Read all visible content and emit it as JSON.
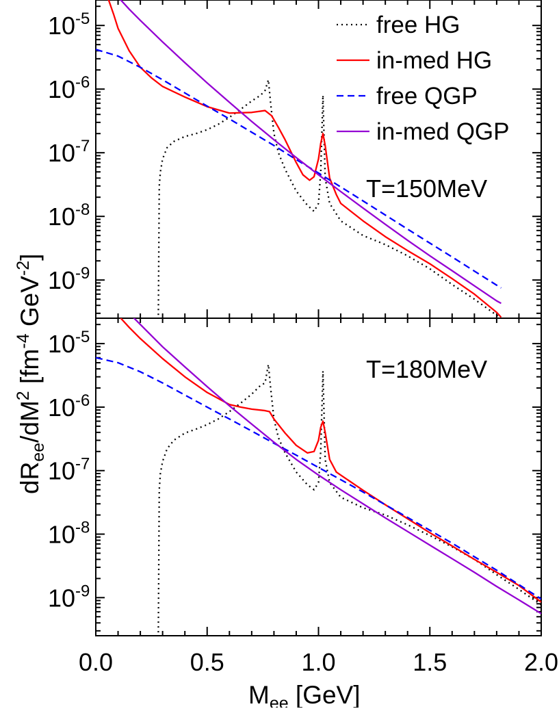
{
  "chart_data": {
    "type": "line",
    "ylabel": "dR_ee/dM^2 [fm^-4 GeV^-2]",
    "xlabel": "M_ee [GeV]",
    "xlim": [
      0,
      2.0
    ],
    "xticks": [
      "0.0",
      "0.5",
      "1.0",
      "1.5",
      "2.0"
    ],
    "legend": {
      "placement": "top-right",
      "entries": [
        {
          "label": "free HG",
          "color": "#000000",
          "dash": "dotted"
        },
        {
          "label": "in-med HG",
          "color": "#ff0000",
          "dash": "solid"
        },
        {
          "label": "free QGP",
          "color": "#0000ff",
          "dash": "dashed"
        },
        {
          "label": "in-med QGP",
          "color": "#9400d3",
          "dash": "solid"
        }
      ]
    },
    "panels": [
      {
        "annotation": "T=150MeV",
        "ylim_log10": [
          -9.6,
          -4.6
        ],
        "yticks": [
          {
            "base": "10",
            "exp": "-5"
          },
          {
            "base": "10",
            "exp": "-6"
          },
          {
            "base": "10",
            "exp": "-7"
          },
          {
            "base": "10",
            "exp": "-8"
          },
          {
            "base": "10",
            "exp": "-9"
          }
        ],
        "series": [
          {
            "name": "free HG",
            "color": "#000000",
            "dash": "dotted",
            "x": [
              0.28,
              0.285,
              0.29,
              0.3,
              0.32,
              0.35,
              0.4,
              0.45,
              0.5,
              0.55,
              0.6,
              0.65,
              0.7,
              0.74,
              0.76,
              0.775,
              0.785,
              0.8,
              0.82,
              0.85,
              0.9,
              0.95,
              0.98,
              1.0,
              1.01,
              1.02,
              1.03,
              1.05,
              1.1,
              1.2,
              1.3,
              1.4,
              1.5,
              1.6,
              1.7,
              1.8,
              1.82
            ],
            "y": [
              1e-10,
              3e-08,
              5e-08,
              8e-08,
              1.2e-07,
              1.5e-07,
              1.8e-07,
              2e-07,
              2.3e-07,
              2.8e-07,
              3.6e-07,
              4.8e-07,
              6.5e-07,
              8e-07,
              9.5e-07,
              1.4e-06,
              6e-07,
              2e-07,
              1e-07,
              5.5e-08,
              2.5e-08,
              1.5e-08,
              1.2e-08,
              1.6e-08,
              5e-08,
              8e-07,
              4e-08,
              1.6e-08,
              8.5e-09,
              5e-09,
              3.6e-09,
              2.4e-09,
              1.5e-09,
              8.5e-10,
              5e-10,
              2.8e-10,
              2.5e-10
            ]
          },
          {
            "name": "in-med HG",
            "color": "#ff0000",
            "dash": "solid",
            "x": [
              0.05,
              0.08,
              0.1,
              0.15,
              0.2,
              0.25,
              0.3,
              0.4,
              0.5,
              0.6,
              0.7,
              0.76,
              0.79,
              0.82,
              0.85,
              0.9,
              0.93,
              0.96,
              0.98,
              1.0,
              1.01,
              1.02,
              1.03,
              1.05,
              1.08,
              1.1,
              1.2,
              1.3,
              1.4,
              1.5,
              1.6,
              1.7,
              1.8,
              1.82
            ],
            "y": [
              3e-05,
              1.5e-05,
              9e-06,
              4e-06,
              2.2e-06,
              1.5e-06,
              1.1e-06,
              7.5e-07,
              5.3e-07,
              4.2e-07,
              4.3e-07,
              4.6e-07,
              3.8e-07,
              2.5e-07,
              1.6e-07,
              7e-08,
              4.5e-08,
              3.7e-08,
              4.2e-08,
              8e-08,
              1.4e-07,
              2e-07,
              1.3e-07,
              4e-08,
              2.2e-08,
              1.6e-08,
              8.5e-09,
              4.8e-09,
              2.9e-09,
              1.8e-09,
              1.05e-09,
              6e-10,
              3.1e-10,
              2.6e-10
            ]
          },
          {
            "name": "free QGP",
            "color": "#0000ff",
            "dash": "dashed",
            "x": [
              0.0,
              0.1,
              0.2,
              0.3,
              0.4,
              0.5,
              0.6,
              0.7,
              0.8,
              0.9,
              1.0,
              1.1,
              1.2,
              1.3,
              1.4,
              1.5,
              1.6,
              1.7,
              1.8,
              1.82
            ],
            "y": [
              4.2e-06,
              3.3e-06,
              2.2e-06,
              1.4e-06,
              8.7e-07,
              5.4e-07,
              3.4e-07,
              2.1e-07,
              1.3e-07,
              7.8e-08,
              4.8e-08,
              2.9e-08,
              1.75e-08,
              1.05e-08,
              6.3e-09,
              3.8e-09,
              2.3e-09,
              1.38e-09,
              8.3e-10,
              7.5e-10
            ]
          },
          {
            "name": "in-med QGP",
            "color": "#9400d3",
            "dash": "solid",
            "x": [
              0.1,
              0.15,
              0.2,
              0.3,
              0.4,
              0.5,
              0.6,
              0.7,
              0.8,
              0.9,
              1.0,
              1.1,
              1.2,
              1.3,
              1.4,
              1.5,
              1.6,
              1.7,
              1.8,
              1.82
            ],
            "y": [
              2.8e-05,
              1.8e-05,
              1.2e-05,
              5.5e-06,
              2.6e-06,
              1.25e-06,
              6.2e-07,
              3.1e-07,
              1.6e-07,
              8.4e-08,
              4.5e-08,
              2.45e-08,
              1.35e-08,
              7.5e-09,
              4.2e-09,
              2.4e-09,
              1.4e-09,
              8.1e-10,
              4.7e-10,
              4.3e-10
            ]
          }
        ]
      },
      {
        "annotation": "T=180MeV",
        "ylim_log10": [
          -9.6,
          -4.6
        ],
        "yticks": [
          {
            "base": "10",
            "exp": "-5"
          },
          {
            "base": "10",
            "exp": "-6"
          },
          {
            "base": "10",
            "exp": "-7"
          },
          {
            "base": "10",
            "exp": "-8"
          },
          {
            "base": "10",
            "exp": "-9"
          }
        ],
        "series": [
          {
            "name": "free HG",
            "color": "#000000",
            "dash": "dotted",
            "x": [
              0.28,
              0.285,
              0.29,
              0.3,
              0.32,
              0.35,
              0.4,
              0.45,
              0.5,
              0.55,
              0.6,
              0.65,
              0.7,
              0.74,
              0.76,
              0.775,
              0.785,
              0.8,
              0.82,
              0.85,
              0.9,
              0.95,
              0.98,
              1.0,
              1.01,
              1.02,
              1.03,
              1.05,
              1.1,
              1.2,
              1.3,
              1.4,
              1.5,
              1.6,
              1.7,
              1.8,
              1.9,
              2.0
            ],
            "y": [
              1e-10,
              5e-08,
              9e-08,
              1.4e-07,
              2.2e-07,
              3e-07,
              3.9e-07,
              4.5e-07,
              5.3e-07,
              6.5e-07,
              8.5e-07,
              1.15e-06,
              1.6e-06,
              2.2e-06,
              2.4e-06,
              4.7e-06,
              2e-06,
              6.5e-07,
              3.3e-07,
              1.9e-07,
              9.5e-08,
              6e-08,
              5e-08,
              6.5e-08,
              2e-07,
              3.7e-06,
              1.5e-07,
              6.5e-08,
              3.8e-08,
              2.6e-08,
              2e-08,
              1.4e-08,
              9.5e-09,
              6.3e-09,
              4e-09,
              2.3e-09,
              1.35e-09,
              7.7e-10
            ]
          },
          {
            "name": "in-med HG",
            "color": "#ff0000",
            "dash": "solid",
            "x": [
              0.1,
              0.15,
              0.2,
              0.3,
              0.4,
              0.5,
              0.6,
              0.65,
              0.7,
              0.76,
              0.78,
              0.8,
              0.85,
              0.9,
              0.95,
              0.98,
              1.0,
              1.01,
              1.02,
              1.03,
              1.05,
              1.08,
              1.1,
              1.2,
              1.3,
              1.4,
              1.5,
              1.6,
              1.7,
              1.8,
              1.9,
              2.0
            ],
            "y": [
              2.8e-05,
              1.8e-05,
              1.2e-05,
              5.8e-06,
              3e-06,
              1.7e-06,
              1.1e-06,
              1e-06,
              9.3e-07,
              8.8e-07,
              8.5e-07,
              6.5e-07,
              3.9e-07,
              2.5e-07,
              1.9e-07,
              2e-07,
              3e-07,
              4.8e-07,
              6e-07,
              4e-07,
              1.5e-07,
              9.5e-08,
              8.5e-08,
              4.9e-08,
              2.9e-08,
              1.75e-08,
              1.05e-08,
              6.5e-09,
              4e-09,
              2.5e-09,
              1.55e-09,
              8.5e-10
            ]
          },
          {
            "name": "free QGP",
            "color": "#0000ff",
            "dash": "dashed",
            "x": [
              0.0,
              0.1,
              0.2,
              0.3,
              0.4,
              0.5,
              0.6,
              0.7,
              0.8,
              0.9,
              1.0,
              1.1,
              1.2,
              1.3,
              1.4,
              1.5,
              1.6,
              1.7,
              1.8,
              1.9,
              2.0
            ],
            "y": [
              6e-06,
              5e-06,
              3.6e-06,
              2.4e-06,
              1.55e-06,
              1e-06,
              6.5e-07,
              4.2e-07,
              2.7e-07,
              1.75e-07,
              1.12e-07,
              7.2e-08,
              4.6e-08,
              2.9e-08,
              1.83e-08,
              1.15e-08,
              7.2e-09,
              4.4e-09,
              2.7e-09,
              1.6e-09,
              9.5e-10
            ]
          },
          {
            "name": "in-med QGP",
            "color": "#9400d3",
            "dash": "solid",
            "x": [
              0.15,
              0.2,
              0.3,
              0.4,
              0.5,
              0.6,
              0.7,
              0.8,
              0.9,
              1.0,
              1.1,
              1.2,
              1.3,
              1.4,
              1.5,
              1.6,
              1.7,
              1.8,
              1.9,
              2.0
            ],
            "y": [
              3e-05,
              2e-05,
              8.9e-06,
              4.3e-06,
              2.1e-06,
              1.05e-06,
              5.4e-07,
              2.8e-07,
              1.5e-07,
              8.5e-08,
              5e-08,
              3e-08,
              1.8e-08,
              1.1e-08,
              6.7e-09,
              4.1e-09,
              2.5e-09,
              1.5e-09,
              9.2e-10,
              5.6e-10
            ]
          }
        ]
      }
    ]
  }
}
